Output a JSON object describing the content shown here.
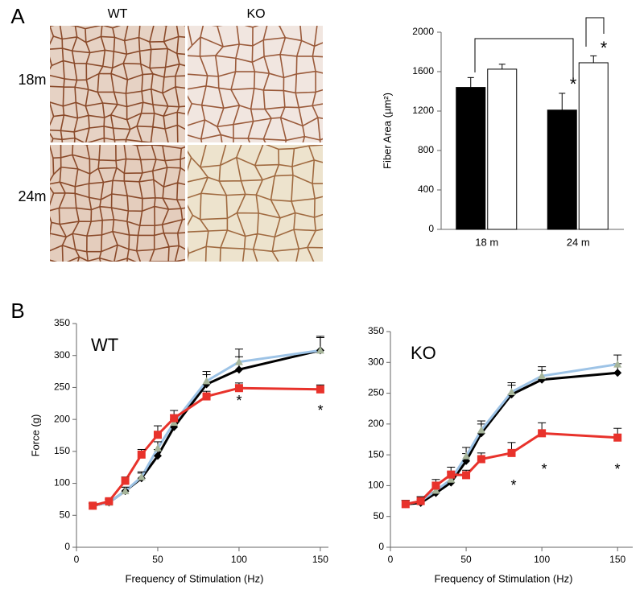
{
  "panel_labels": [
    "A",
    "B"
  ],
  "images": {
    "columns": [
      "WT",
      "KO"
    ],
    "rows": [
      "18m",
      "24m"
    ]
  },
  "chart_data": [
    {
      "type": "bar",
      "ylabel": "Fiber Area (µm²)",
      "categories": [
        "18 m",
        "24 m"
      ],
      "series": [
        {
          "color": "#000000",
          "values": [
            1440,
            1210
          ],
          "errors": [
            100,
            170
          ]
        },
        {
          "color": "#ffffff",
          "values": [
            1625,
            1690
          ],
          "errors": [
            50,
            70
          ]
        }
      ],
      "ylim": [
        0,
        2000
      ],
      "yticks": [
        0,
        400,
        800,
        1200,
        1600,
        2000
      ],
      "annotations": [
        "*",
        "*"
      ]
    },
    {
      "type": "line",
      "label": "WT",
      "xlabel": "Frequency of Stimulation (Hz)",
      "ylabel": "Force (g)",
      "x": [
        10,
        20,
        30,
        40,
        50,
        60,
        80,
        100,
        150
      ],
      "series": [
        {
          "color": "#000000",
          "marker": "diamond",
          "values": [
            65,
            70,
            88,
            108,
            143,
            188,
            255,
            278,
            308
          ],
          "errors": [
            4,
            5,
            6,
            8,
            10,
            12,
            15,
            20,
            20
          ]
        },
        {
          "color": "#9dc3e6",
          "marker": "triangle",
          "values": [
            65,
            70,
            88,
            110,
            155,
            195,
            260,
            290,
            308
          ],
          "errors": [
            4,
            5,
            6,
            8,
            10,
            12,
            15,
            20,
            22
          ]
        },
        {
          "color": "#e8322b",
          "marker": "square",
          "values": [
            65,
            72,
            104,
            145,
            176,
            202,
            236,
            249,
            247
          ],
          "errors": [
            3,
            4,
            6,
            8,
            14,
            12,
            8,
            8,
            7
          ]
        }
      ],
      "xlim": [
        0,
        155
      ],
      "ylim": [
        0,
        350
      ],
      "xticks": [
        0,
        50,
        100,
        150
      ],
      "yticks": [
        0,
        50,
        100,
        150,
        200,
        250,
        300,
        350
      ],
      "annotations": [
        "*",
        "*"
      ]
    },
    {
      "type": "line",
      "label": "KO",
      "xlabel": "Frequency of Stimulation (Hz)",
      "ylabel": "",
      "x": [
        10,
        20,
        30,
        40,
        50,
        60,
        80,
        100,
        150
      ],
      "series": [
        {
          "color": "#000000",
          "marker": "diamond",
          "values": [
            70,
            72,
            88,
            105,
            140,
            185,
            248,
            272,
            283
          ],
          "errors": [
            6,
            6,
            8,
            10,
            12,
            15,
            15,
            15,
            15
          ]
        },
        {
          "color": "#9dc3e6",
          "marker": "triangle",
          "values": [
            70,
            75,
            92,
            110,
            148,
            190,
            252,
            278,
            297
          ],
          "errors": [
            6,
            7,
            10,
            12,
            14,
            15,
            15,
            15,
            15
          ]
        },
        {
          "color": "#e8322b",
          "marker": "square",
          "values": [
            70,
            75,
            100,
            118,
            117,
            143,
            153,
            185,
            178
          ],
          "errors": [
            6,
            7,
            10,
            12,
            8,
            10,
            17,
            17,
            15
          ]
        }
      ],
      "xlim": [
        0,
        160
      ],
      "ylim": [
        0,
        350
      ],
      "xticks": [
        0,
        50,
        100,
        150
      ],
      "yticks": [
        0,
        50,
        100,
        150,
        200,
        250,
        300,
        350
      ],
      "annotations": [
        "*",
        "*",
        "*"
      ]
    }
  ]
}
